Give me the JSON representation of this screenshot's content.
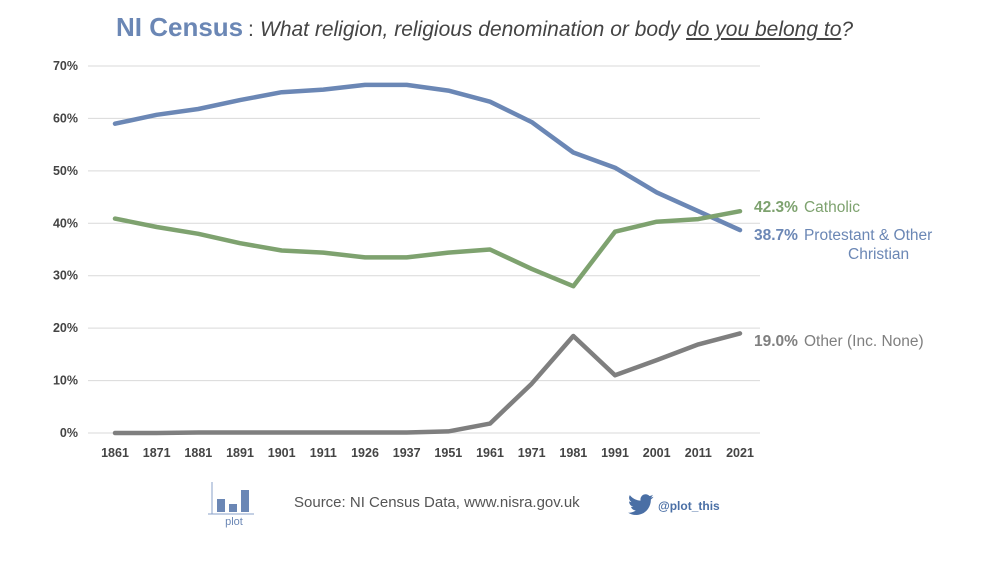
{
  "title": {
    "main": "NI Census",
    "separator": ":",
    "question_pre": "What religion, religious denomination or body ",
    "question_underlined": "do you belong to",
    "question_post": "?"
  },
  "colors": {
    "protestant": "#6b87b5",
    "catholic": "#7ea26f",
    "other": "#7f7f7f",
    "title": "#6b87b5",
    "grid": "#d9d9d9"
  },
  "chart_data": {
    "type": "line",
    "title": "NI Census : What religion, religious denomination or body do you belong to?",
    "x": [
      "1861",
      "1871",
      "1881",
      "1891",
      "1901",
      "1911",
      "1926",
      "1937",
      "1951",
      "1961",
      "1971",
      "1981",
      "1991",
      "2001",
      "2011",
      "2021"
    ],
    "y_ticks": [
      "0%",
      "10%",
      "20%",
      "30%",
      "40%",
      "50%",
      "60%",
      "70%"
    ],
    "ylim": [
      0,
      70
    ],
    "grid": true,
    "series": [
      {
        "name": "Protestant & Other Christian",
        "key": "protestant",
        "values": [
          59.0,
          60.7,
          61.8,
          63.5,
          65.0,
          65.5,
          66.4,
          66.4,
          65.3,
          63.2,
          59.3,
          53.5,
          50.6,
          45.9,
          42.3,
          38.7
        ],
        "label_value": "38.7%",
        "label_line1": "Protestant & Other",
        "label_line2": "Christian"
      },
      {
        "name": "Catholic",
        "key": "catholic",
        "values": [
          40.9,
          39.3,
          38.0,
          36.2,
          34.8,
          34.4,
          33.5,
          33.5,
          34.4,
          35.0,
          31.3,
          28.0,
          38.4,
          40.3,
          40.8,
          42.3
        ],
        "label_value": "42.3%",
        "label_line1": "Catholic",
        "label_line2": ""
      },
      {
        "name": "Other (Inc. None)",
        "key": "other",
        "values": [
          0.0,
          0.0,
          0.1,
          0.1,
          0.1,
          0.1,
          0.1,
          0.1,
          0.3,
          1.8,
          9.4,
          18.5,
          11.0,
          13.9,
          16.9,
          19.0
        ],
        "label_value": "19.0%",
        "label_line1": "Other (Inc. None)",
        "label_line2": ""
      }
    ]
  },
  "footer": {
    "source": "Source: NI Census Data, www.nisra.gov.uk",
    "logo_text": "plot",
    "twitter_handle": "@plot_this"
  }
}
